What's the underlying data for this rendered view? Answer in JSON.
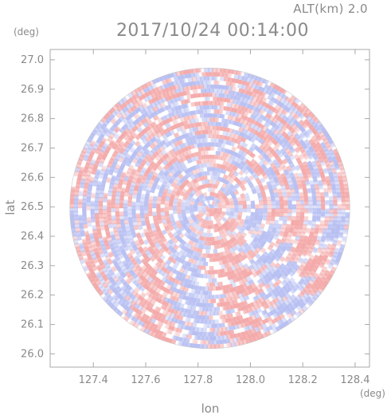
{
  "chart_data": {
    "type": "heatmap",
    "title": "2017/10/24 00:14:00",
    "subtitle": "ALT(km) 2.0",
    "xlabel": "lon",
    "ylabel": "lat",
    "x_unit": "(deg)",
    "y_unit": "(deg)",
    "x_ticks": [
      127.4,
      127.6,
      127.8,
      128.0,
      128.2,
      128.4
    ],
    "y_ticks": [
      26.0,
      26.1,
      26.2,
      26.3,
      26.4,
      26.5,
      26.6,
      26.7,
      26.8,
      26.9,
      27.0
    ],
    "x_tick_labels": [
      "127.4",
      "127.6",
      "127.8",
      "128.0",
      "128.2",
      "128.4"
    ],
    "y_tick_labels": [
      "26.0",
      "26.1",
      "26.2",
      "26.3",
      "26.4",
      "26.5",
      "26.6",
      "26.7",
      "26.8",
      "26.9",
      "27.0"
    ],
    "xlim": [
      127.235,
      128.455
    ],
    "ylim": [
      25.955,
      27.035
    ],
    "center": [
      127.845,
      26.495
    ],
    "radius_deg": 0.535,
    "grid": false,
    "colors": {
      "positive": "#f4a9a9",
      "negative": "#b7bff2",
      "neutral": "#ffffff",
      "axis": "#a8a8a8",
      "text": "#8a8a8a"
    }
  }
}
